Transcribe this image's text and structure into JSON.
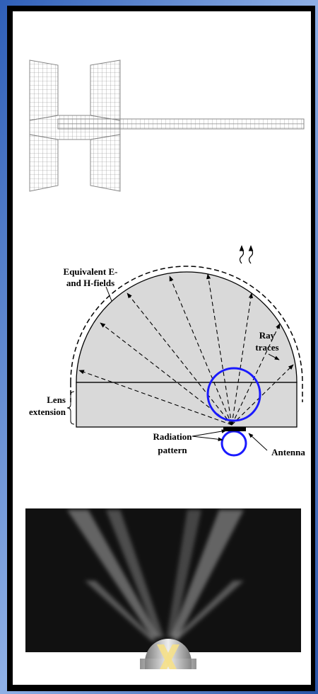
{
  "figure_labels": {
    "fields": [
      "Equivalent E-",
      "and H-fields"
    ],
    "rays": [
      "Ray",
      "traces"
    ],
    "extension": [
      "Lens",
      "extension"
    ],
    "pattern": [
      "Radiation",
      "pattern"
    ],
    "antenna": "Antenna"
  }
}
